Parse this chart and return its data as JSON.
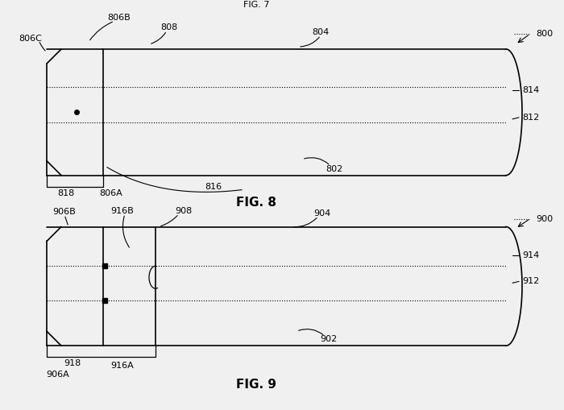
{
  "bg_color": "#f0f0f0",
  "fig8": {
    "title": "FIG. 8",
    "label_800": "800",
    "label_804": "804",
    "label_808": "808",
    "label_806B": "806B",
    "label_806C": "806C",
    "label_806A": "806A",
    "label_818": "818",
    "label_816": "816",
    "label_802": "802",
    "label_812": "812",
    "label_814": "814"
  },
  "fig9": {
    "title": "FIG. 9",
    "label_900": "900",
    "label_904": "904",
    "label_908": "908",
    "label_906B": "906B",
    "label_906A": "906A",
    "label_916B": "916B",
    "label_916A": "916A",
    "label_918": "918",
    "label_902": "902",
    "label_912": "912",
    "label_914": "914"
  }
}
